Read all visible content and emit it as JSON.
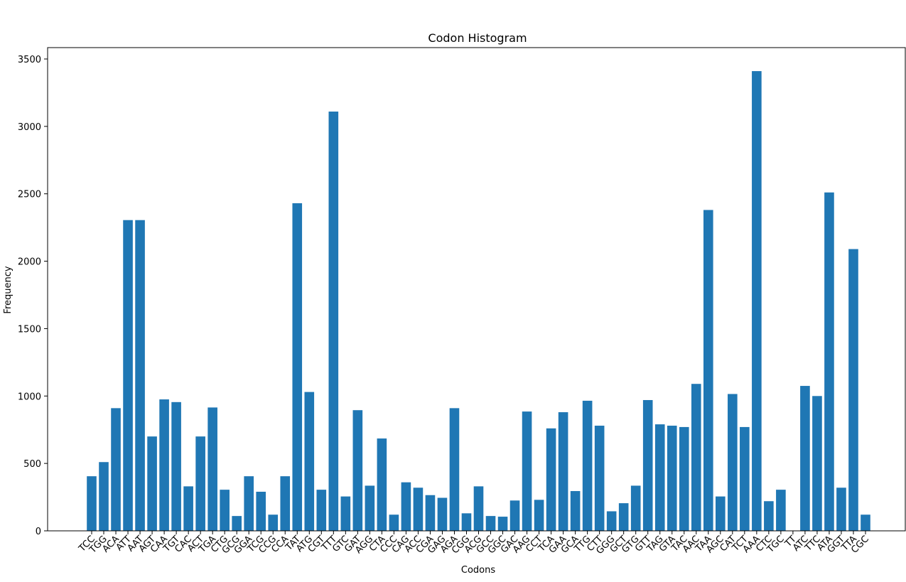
{
  "chart_data": {
    "type": "bar",
    "title": "Codon Histogram",
    "xlabel": "Codons",
    "ylabel": "Frequency",
    "ylim": [
      0,
      3500
    ],
    "yticks": [
      0,
      500,
      1000,
      1500,
      2000,
      2500,
      3000,
      3500
    ],
    "grid": false,
    "bar_color": "#1f77b4",
    "categories": [
      "TCC",
      "TGG",
      "ACA",
      "ATT",
      "AAT",
      "AGT",
      "CAA",
      "TGT",
      "CAC",
      "ACT",
      "TGA",
      "CTG",
      "GCG",
      "GGA",
      "TCG",
      "CCG",
      "CCA",
      "TAT",
      "ATG",
      "CGT",
      "TTT",
      "GTC",
      "GAT",
      "AGG",
      "CTA",
      "CCC",
      "CAG",
      "ACC",
      "CGA",
      "GAG",
      "AGA",
      "CGG",
      "ACG",
      "GCC",
      "GGC",
      "GAC",
      "AAG",
      "CCT",
      "TCA",
      "GAA",
      "GCA",
      "TTG",
      "CTT",
      "GGG",
      "GCT",
      "GTG",
      "GTT",
      "TAG",
      "GTA",
      "TAC",
      "AAC",
      "TAA",
      "AGC",
      "CAT",
      "TCT",
      "AAA",
      "CTC",
      "TGC",
      "TT",
      "ATC",
      "TTC",
      "ATA",
      "GGT",
      "TTA",
      "CGC"
    ],
    "values": [
      405,
      510,
      910,
      2305,
      2305,
      700,
      975,
      955,
      330,
      700,
      915,
      305,
      110,
      405,
      290,
      120,
      405,
      2430,
      1030,
      305,
      3110,
      255,
      895,
      335,
      685,
      120,
      360,
      320,
      265,
      245,
      910,
      130,
      330,
      110,
      105,
      225,
      885,
      230,
      760,
      880,
      295,
      965,
      780,
      145,
      205,
      335,
      970,
      790,
      780,
      770,
      1090,
      2380,
      255,
      1015,
      770,
      3410,
      220,
      305,
      0,
      1075,
      1000,
      2510,
      320,
      2090,
      120
    ]
  }
}
